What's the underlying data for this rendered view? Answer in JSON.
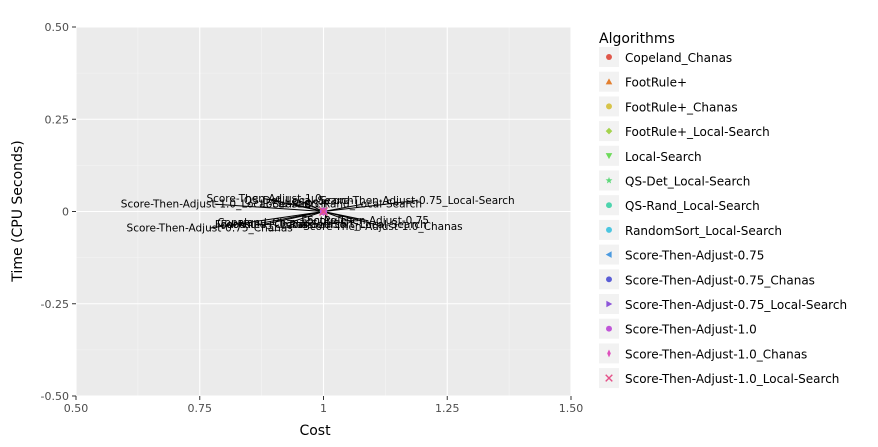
{
  "chart_data": {
    "type": "scatter",
    "xlabel": "Cost",
    "ylabel": "Time (CPU Seconds)",
    "xlim": [
      0.5,
      1.5
    ],
    "ylim": [
      -0.5,
      0.5
    ],
    "x_ticks": [
      0.5,
      0.75,
      1.0,
      1.25,
      1.5
    ],
    "x_tick_labels": [
      "0.50",
      "0.75",
      "1",
      "1.25",
      "1.50"
    ],
    "y_ticks": [
      0.5,
      0.25,
      0.0,
      -0.25,
      -0.5
    ],
    "y_tick_labels": [
      "0.50",
      "0.25",
      "0",
      "-0.25",
      "-0.50"
    ],
    "grid": true,
    "legend": {
      "title": "Algorithms",
      "placement": "right"
    },
    "series": [
      {
        "name": "Copeland_Chanas",
        "color": "#e0574a",
        "marker": "circle",
        "x": 1.0,
        "y": 0.0,
        "label": "Copeland_Chanas",
        "label_dx": -0.12,
        "label_dy": -0.03
      },
      {
        "name": "FootRule+",
        "color": "#e37f2f",
        "marker": "triangle-up",
        "x": 1.0,
        "y": 0.0,
        "label": "FootRule+",
        "label_dx": 0.01,
        "label_dy": -0.025
      },
      {
        "name": "FootRule+_Chanas",
        "color": "#d7c449",
        "marker": "circle",
        "x": 1.0,
        "y": 0.0,
        "label": "FootRule+_Chanas",
        "label_dx": -0.12,
        "label_dy": -0.035
      },
      {
        "name": "FootRule+_Local-Search",
        "color": "#a4d34d",
        "marker": "diamond",
        "x": 1.0,
        "y": 0.0,
        "label": "FootRule+_Local-Search",
        "label_dx": -0.08,
        "label_dy": -0.035
      },
      {
        "name": "Local-Search",
        "color": "#6dda5a",
        "marker": "triangle-down",
        "x": 1.0,
        "y": 0.0,
        "label": "Local-Search",
        "label_dx": -0.06,
        "label_dy": 0.02
      },
      {
        "name": "QS-Det_Local-Search",
        "color": "#5ed87a",
        "marker": "star",
        "x": 1.0,
        "y": 0.0,
        "label": "QS-Det_Local-Search",
        "label_dx": -0.05,
        "label_dy": 0.03
      },
      {
        "name": "QS-Rand_Local-Search",
        "color": "#4dd4ad",
        "marker": "circle",
        "x": 1.0,
        "y": 0.0,
        "label": "QS-Rand_Local-Search",
        "label_dx": 0.08,
        "label_dy": 0.02
      },
      {
        "name": "RandomSort_Local-Search",
        "color": "#4cc6e1",
        "marker": "circle",
        "x": 1.0,
        "y": 0.0,
        "label": "RandomSort_Local-Search",
        "label_dx": 0.07,
        "label_dy": -0.035
      },
      {
        "name": "Score-Then-Adjust-0.75",
        "color": "#4b9ae0",
        "marker": "triangle-left",
        "x": 1.0,
        "y": 0.0,
        "label": "Score-Then-Adjust-0.75",
        "label_dx": 0.09,
        "label_dy": -0.025
      },
      {
        "name": "Score-Then-Adjust-0.75_Chanas",
        "color": "#5a5dd6",
        "marker": "circle",
        "x": 1.0,
        "y": 0.0,
        "label": "Score-Then-Adjust-0.75_Chanas",
        "label_dx": -0.23,
        "label_dy": -0.045
      },
      {
        "name": "Score-Then-Adjust-0.75_Local-Search",
        "color": "#8d55d9",
        "marker": "triangle-right",
        "x": 1.0,
        "y": 0.0,
        "label": "Score-Then-Adjust-0.75_Local-Search",
        "label_dx": 0.19,
        "label_dy": 0.03
      },
      {
        "name": "Score-Then-Adjust-1.0",
        "color": "#c055d8",
        "marker": "circle",
        "x": 1.0,
        "y": 0.0,
        "label": "Score-Then-Adjust-1.0",
        "label_dx": -0.12,
        "label_dy": 0.035
      },
      {
        "name": "Score-Then-Adjust-1.0_Chanas",
        "color": "#df4fbd",
        "marker": "thin-diamond",
        "x": 1.0,
        "y": 0.0,
        "label": "Score-Then-Adjust-1.0_Chanas",
        "label_dx": 0.12,
        "label_dy": -0.04
      },
      {
        "name": "Score-Then-Adjust-1.0_Local-Search",
        "color": "#e55189",
        "marker": "cross",
        "x": 1.0,
        "y": 0.0,
        "label": "Score-Then-Adjust-1.0_Local-Search",
        "label_dx": -0.22,
        "label_dy": 0.02
      }
    ]
  }
}
